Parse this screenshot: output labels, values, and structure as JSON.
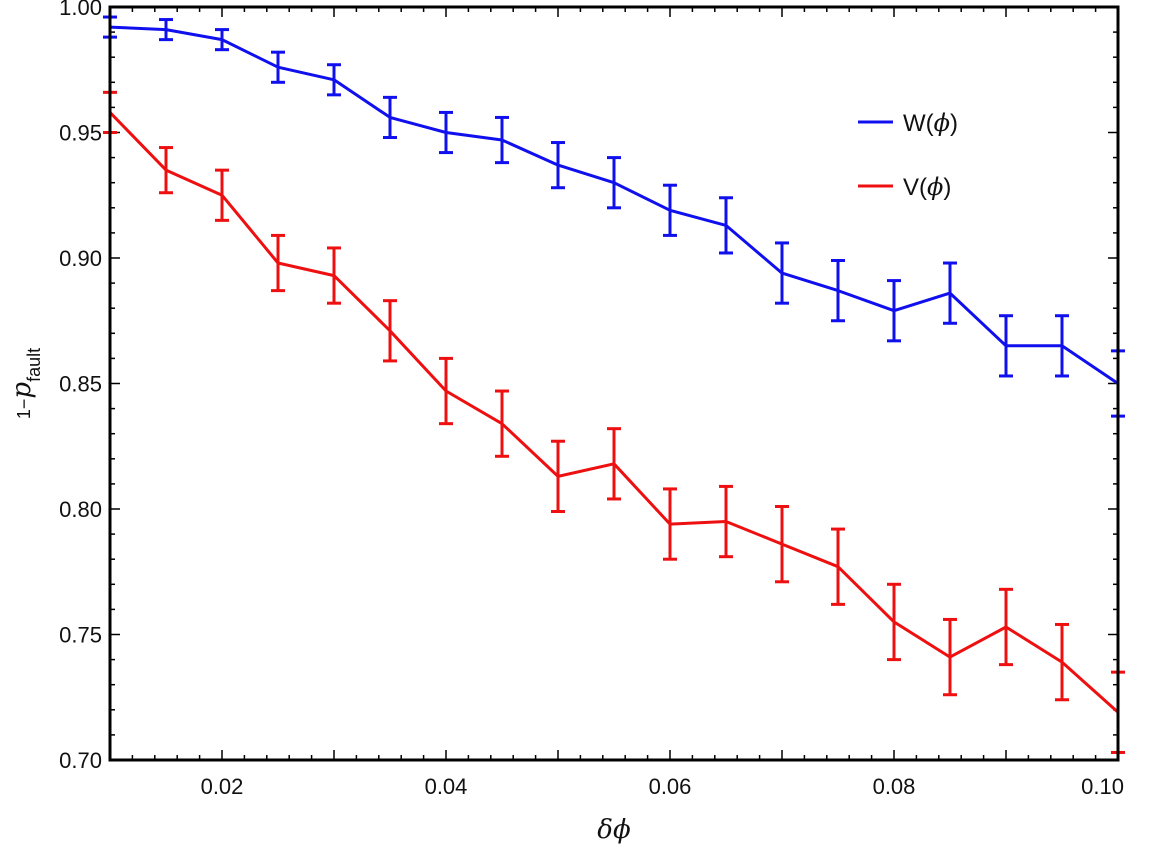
{
  "chart_data": {
    "type": "line",
    "title": "",
    "xlabel": "δϕ",
    "ylabel": {
      "prefix": "1−",
      "main": "p",
      "subscript": "fault"
    },
    "xlim": [
      0.01,
      0.1
    ],
    "ylim": [
      0.7,
      1.0
    ],
    "x_ticks": [
      "0.02",
      "0.04",
      "0.06",
      "0.08",
      "0.10"
    ],
    "y_ticks": [
      "0.70",
      "0.75",
      "0.80",
      "0.85",
      "0.90",
      "0.95",
      "1.00"
    ],
    "x": [
      0.01,
      0.015,
      0.02,
      0.025,
      0.03,
      0.035,
      0.04,
      0.045,
      0.05,
      0.055,
      0.06,
      0.065,
      0.07,
      0.075,
      0.08,
      0.085,
      0.09,
      0.095,
      0.1
    ],
    "legend_position": "top-right",
    "series": [
      {
        "name": "W(ϕ)",
        "legend_label": "W(",
        "legend_phi": "ϕ",
        "legend_close": ")",
        "color": "#1010ee",
        "values": [
          0.992,
          0.991,
          0.987,
          0.976,
          0.971,
          0.956,
          0.95,
          0.947,
          0.937,
          0.93,
          0.919,
          0.913,
          0.894,
          0.887,
          0.879,
          0.886,
          0.865,
          0.865,
          0.85
        ],
        "errors": [
          0.004,
          0.004,
          0.004,
          0.006,
          0.006,
          0.008,
          0.008,
          0.009,
          0.009,
          0.01,
          0.01,
          0.011,
          0.012,
          0.012,
          0.012,
          0.012,
          0.012,
          0.012,
          0.013
        ]
      },
      {
        "name": "V(ϕ)",
        "legend_label": "V(",
        "legend_phi": "ϕ",
        "legend_close": ")",
        "color": "#ee1010",
        "values": [
          0.958,
          0.935,
          0.925,
          0.898,
          0.893,
          0.871,
          0.847,
          0.834,
          0.813,
          0.818,
          0.794,
          0.795,
          0.786,
          0.777,
          0.755,
          0.741,
          0.753,
          0.739,
          0.719
        ],
        "errors": [
          0.008,
          0.009,
          0.01,
          0.011,
          0.011,
          0.012,
          0.013,
          0.013,
          0.014,
          0.014,
          0.014,
          0.014,
          0.015,
          0.015,
          0.015,
          0.015,
          0.015,
          0.015,
          0.016
        ]
      }
    ]
  }
}
